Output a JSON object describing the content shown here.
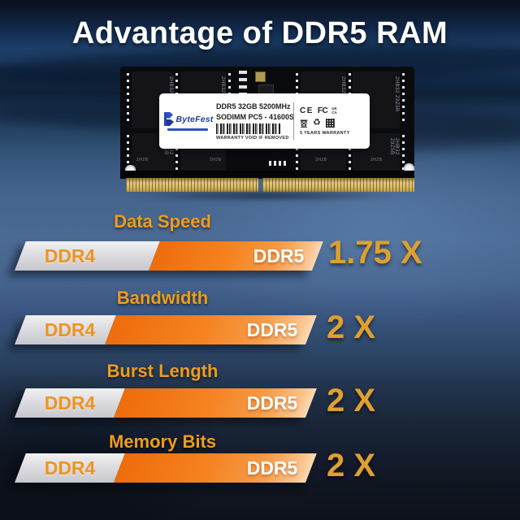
{
  "title": "Advantage of DDR5 RAM",
  "ram_module": {
    "label": {
      "brand": "ByteFest",
      "spec_line1": "DDR5 32GB 5200MHz",
      "spec_line2": "SODIMM PC5 - 41600S",
      "warranty_seal": "WARRANTY VOID IF REMOVED",
      "warranty_right": "5 YEARS WARRANTY",
      "cert_ce": "CE",
      "cert_fcc": "FC",
      "cert_uk": "UK",
      "cert_ca": "CA"
    },
    "chip_marking_line1": "2HB32",
    "chip_marking_line2": "Z9Z5B",
    "chip_marking_small": "2H2B"
  },
  "comparisons": [
    {
      "heading": "Data Speed",
      "left_label": "DDR4",
      "right_label": "DDR5",
      "multiplier": "1.75 X",
      "ddr4_width_pct": 45
    },
    {
      "heading": "Bandwidth",
      "left_label": "DDR4",
      "right_label": "DDR5",
      "multiplier": "2 X",
      "ddr4_width_pct": 31
    },
    {
      "heading": "Burst Length",
      "left_label": "DDR4",
      "right_label": "DDR5",
      "multiplier": "2 X",
      "ddr4_width_pct": 34
    },
    {
      "heading": "Memory Bits",
      "left_label": "DDR4",
      "right_label": "DDR5",
      "multiplier": "2 X",
      "ddr4_width_pct": 34
    }
  ],
  "chart_data": {
    "type": "bar",
    "categories": [
      "Data Speed",
      "Bandwidth",
      "Burst Length",
      "Memory Bits"
    ],
    "series": [
      {
        "name": "DDR4",
        "values": [
          1,
          1,
          1,
          1
        ]
      },
      {
        "name": "DDR5",
        "values": [
          1.75,
          2,
          2,
          2
        ]
      }
    ],
    "title": "Advantage of DDR5 RAM",
    "annotations": [
      "1.75 X",
      "2 X",
      "2 X",
      "2 X"
    ],
    "legend_position": "in-bar",
    "grid": false
  },
  "colors": {
    "heading_orange": "#ef9c1a",
    "multiplier_gold": "#dfa02f",
    "bar_orange_start": "#ee6c0c",
    "bar_orange_end": "#fcd9b4",
    "bar_gray": "#d9d9dd",
    "ddr4_text": "#ee9322",
    "ddr5_text": "#ffffff",
    "pins_gold": "#d4b860",
    "brand_blue": "#21399e"
  }
}
